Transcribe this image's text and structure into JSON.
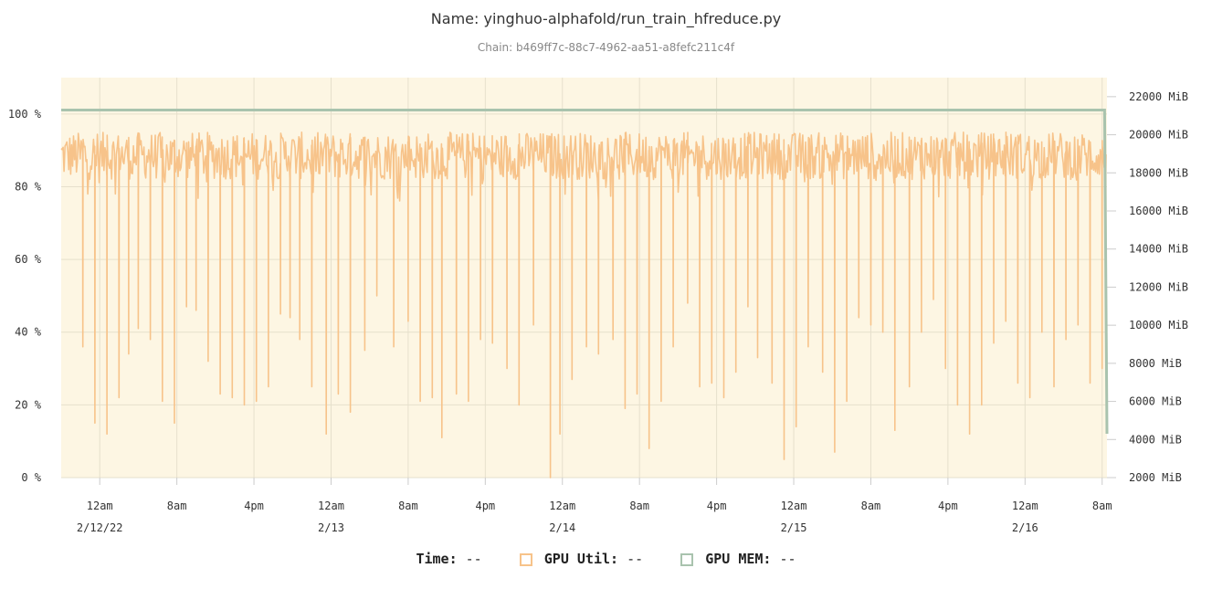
{
  "chart_data": {
    "type": "line",
    "title": "Name: yinghuo-alphafold/run_train_hfreduce.py",
    "subtitle": "Chain: b469ff7c-88c7-4962-aa51-a8fefc211c4f",
    "x_axis": {
      "start": "2/11/22 8:00pm",
      "end": "2/16/22 8:30am",
      "ticks": [
        {
          "time": "2/12/22 12am",
          "label": "12am",
          "date_label": "2/12/22"
        },
        {
          "time": "2/12/22 8am",
          "label": "8am",
          "date_label": ""
        },
        {
          "time": "2/12/22 4pm",
          "label": "4pm",
          "date_label": ""
        },
        {
          "time": "2/13/22 12am",
          "label": "12am",
          "date_label": "2/13"
        },
        {
          "time": "2/13/22 8am",
          "label": "8am",
          "date_label": ""
        },
        {
          "time": "2/13/22 4pm",
          "label": "4pm",
          "date_label": ""
        },
        {
          "time": "2/14/22 12am",
          "label": "12am",
          "date_label": "2/14"
        },
        {
          "time": "2/14/22 8am",
          "label": "8am",
          "date_label": ""
        },
        {
          "time": "2/14/22 4pm",
          "label": "4pm",
          "date_label": ""
        },
        {
          "time": "2/15/22 12am",
          "label": "12am",
          "date_label": "2/15"
        },
        {
          "time": "2/15/22 8am",
          "label": "8am",
          "date_label": ""
        },
        {
          "time": "2/15/22 4pm",
          "label": "4pm",
          "date_label": ""
        },
        {
          "time": "2/16/22 12am",
          "label": "12am",
          "date_label": "2/16"
        },
        {
          "time": "2/16/22 8am",
          "label": "8am",
          "date_label": ""
        }
      ]
    },
    "y_left": {
      "min": 0,
      "max": 110,
      "ticks": [
        "0 %",
        "20 %",
        "40 %",
        "60 %",
        "80 %",
        "100 %"
      ],
      "values": [
        0,
        20,
        40,
        60,
        80,
        100
      ]
    },
    "y_right": {
      "min": 2000,
      "max": 23000,
      "ticks": [
        "2000 MiB",
        "4000 MiB",
        "6000 MiB",
        "8000 MiB",
        "10000 MiB",
        "12000 MiB",
        "14000 MiB",
        "16000 MiB",
        "18000 MiB",
        "20000 MiB",
        "22000 MiB"
      ],
      "values": [
        2000,
        4000,
        6000,
        8000,
        10000,
        12000,
        14000,
        16000,
        18000,
        20000,
        22000
      ]
    },
    "grid": true,
    "plot_background": "#fdf6e3",
    "series": [
      {
        "name": "GPU Util",
        "axis": "left",
        "color": "#f7c38a",
        "typical_range": [
          82,
          95
        ],
        "dip_times_and_values": [
          [
            "2/11/22 10:15pm",
            36
          ],
          [
            "2/11/22 11:30pm",
            15
          ],
          [
            "2/12/22 12:45am",
            12
          ],
          [
            "2/12/22 2:00am",
            22
          ],
          [
            "2/12/22 3:00am",
            34
          ],
          [
            "2/12/22 4:00am",
            41
          ],
          [
            "2/12/22 5:15am",
            38
          ],
          [
            "2/12/22 6:30am",
            21
          ],
          [
            "2/12/22 7:45am",
            15
          ],
          [
            "2/12/22 9:00am",
            47
          ],
          [
            "2/12/22 10:00am",
            46
          ],
          [
            "2/12/22 11:15am",
            32
          ],
          [
            "2/12/22 12:30pm",
            23
          ],
          [
            "2/12/22 1:45pm",
            22
          ],
          [
            "2/12/22 3:00pm",
            20
          ],
          [
            "2/12/22 4:15pm",
            21
          ],
          [
            "2/12/22 5:30pm",
            25
          ],
          [
            "2/12/22 6:45pm",
            45
          ],
          [
            "2/12/22 7:45pm",
            44
          ],
          [
            "2/12/22 8:45pm",
            38
          ],
          [
            "2/12/22 10:00pm",
            25
          ],
          [
            "2/12/22 11:30pm",
            12
          ],
          [
            "2/13/22 12:45am",
            23
          ],
          [
            "2/13/22 2:00am",
            18
          ],
          [
            "2/13/22 3:30am",
            35
          ],
          [
            "2/13/22 4:45am",
            50
          ],
          [
            "2/13/22 6:30am",
            36
          ],
          [
            "2/13/22 8:00am",
            43
          ],
          [
            "2/13/22 9:15am",
            21
          ],
          [
            "2/13/22 10:30am",
            22
          ],
          [
            "2/13/22 11:30am",
            11
          ],
          [
            "2/13/22 1:00pm",
            23
          ],
          [
            "2/13/22 2:15pm",
            21
          ],
          [
            "2/13/22 3:30pm",
            38
          ],
          [
            "2/13/22 4:45pm",
            37
          ],
          [
            "2/13/22 6:15pm",
            30
          ],
          [
            "2/13/22 7:30pm",
            20
          ],
          [
            "2/13/22 9:00pm",
            42
          ],
          [
            "2/13/22 10:45pm",
            0
          ],
          [
            "2/13/22 11:45pm",
            12
          ],
          [
            "2/14/22 1:00am",
            27
          ],
          [
            "2/14/22 2:30am",
            36
          ],
          [
            "2/14/22 3:45am",
            34
          ],
          [
            "2/14/22 5:15am",
            38
          ],
          [
            "2/14/22 6:30am",
            19
          ],
          [
            "2/14/22 7:45am",
            23
          ],
          [
            "2/14/22 9:00am",
            8
          ],
          [
            "2/14/22 10:15am",
            21
          ],
          [
            "2/14/22 11:30am",
            36
          ],
          [
            "2/14/22 1:00pm",
            48
          ],
          [
            "2/14/22 2:15pm",
            25
          ],
          [
            "2/14/22 3:30pm",
            26
          ],
          [
            "2/14/22 4:45pm",
            22
          ],
          [
            "2/14/22 6:00pm",
            29
          ],
          [
            "2/14/22 7:15pm",
            47
          ],
          [
            "2/14/22 8:15pm",
            33
          ],
          [
            "2/14/22 9:45pm",
            26
          ],
          [
            "2/14/22 11:00pm",
            5
          ],
          [
            "2/15/22 12:15am",
            14
          ],
          [
            "2/15/22 1:30am",
            36
          ],
          [
            "2/15/22 3:00am",
            29
          ],
          [
            "2/15/22 4:15am",
            7
          ],
          [
            "2/15/22 5:30am",
            21
          ],
          [
            "2/15/22 6:45am",
            44
          ],
          [
            "2/15/22 8:00am",
            42
          ],
          [
            "2/15/22 9:15am",
            40
          ],
          [
            "2/15/22 10:30am",
            13
          ],
          [
            "2/15/22 12:00pm",
            25
          ],
          [
            "2/15/22 1:15pm",
            40
          ],
          [
            "2/15/22 2:30pm",
            49
          ],
          [
            "2/15/22 3:45pm",
            30
          ],
          [
            "2/15/22 5:00pm",
            20
          ],
          [
            "2/15/22 6:15pm",
            12
          ],
          [
            "2/15/22 7:30pm",
            20
          ],
          [
            "2/15/22 8:45pm",
            37
          ],
          [
            "2/15/22 10:00pm",
            43
          ],
          [
            "2/15/22 11:15pm",
            26
          ],
          [
            "2/16/22 12:30am",
            22
          ],
          [
            "2/16/22 1:45am",
            40
          ],
          [
            "2/16/22 3:00am",
            25
          ],
          [
            "2/16/22 4:15am",
            38
          ],
          [
            "2/16/22 5:30am",
            42
          ],
          [
            "2/16/22 6:45am",
            26
          ],
          [
            "2/16/22 8:00am",
            30
          ]
        ],
        "end_value": 75
      },
      {
        "name": "GPU MEM",
        "axis": "right",
        "color": "#a9c3ae",
        "values_mib": [
          {
            "time": "2/11/22 8:00pm",
            "value": 21300
          },
          {
            "time": "2/16/22 8:15am",
            "value": 21300
          },
          {
            "time": "2/16/22 8:30am",
            "value": 4300
          }
        ]
      }
    ],
    "legend": {
      "position": "bottom",
      "time_label": "Time:",
      "time_value": "--",
      "util_label": "GPU Util:",
      "util_value": "--",
      "mem_label": "GPU MEM:",
      "mem_value": "--"
    }
  }
}
